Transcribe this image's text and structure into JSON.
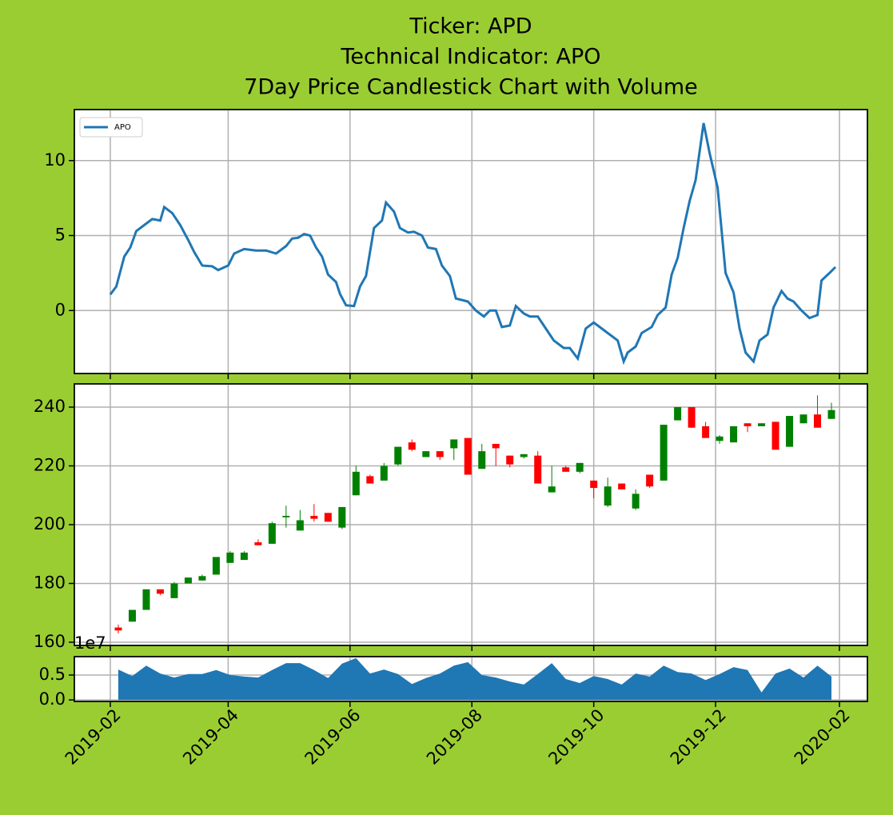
{
  "chart_data": [
    {
      "type": "line",
      "title": [
        "Ticker: APD",
        "Technical Indicator: APO",
        "7Day Price Candlestick Chart with Volume"
      ],
      "x": [
        "2019-02-01",
        "2019-02-04",
        "2019-02-08",
        "2019-02-11",
        "2019-02-14",
        "2019-02-18",
        "2019-02-22",
        "2019-02-26",
        "2019-02-28",
        "2019-03-04",
        "2019-03-08",
        "2019-03-12",
        "2019-03-15",
        "2019-03-19",
        "2019-03-24",
        "2019-03-27",
        "2019-04-01",
        "2019-04-04",
        "2019-04-09",
        "2019-04-15",
        "2019-04-20",
        "2019-04-25",
        "2019-04-30",
        "2019-05-03",
        "2019-05-06",
        "2019-05-09",
        "2019-05-12",
        "2019-05-15",
        "2019-05-18",
        "2019-05-21",
        "2019-05-25",
        "2019-05-27",
        "2019-05-30",
        "2019-06-03",
        "2019-06-06",
        "2019-06-09",
        "2019-06-13",
        "2019-06-17",
        "2019-06-19",
        "2019-06-23",
        "2019-06-26",
        "2019-06-30",
        "2019-07-03",
        "2019-07-07",
        "2019-07-10",
        "2019-07-14",
        "2019-07-17",
        "2019-07-21",
        "2019-07-24",
        "2019-07-30",
        "2019-08-03",
        "2019-08-07",
        "2019-08-10",
        "2019-08-13",
        "2019-08-16",
        "2019-08-20",
        "2019-08-23",
        "2019-08-27",
        "2019-08-30",
        "2019-09-03",
        "2019-09-07",
        "2019-09-11",
        "2019-09-16",
        "2019-09-19",
        "2019-09-23",
        "2019-09-27",
        "2019-10-01",
        "2019-10-05",
        "2019-10-09",
        "2019-10-13",
        "2019-10-16",
        "2019-10-18",
        "2019-10-22",
        "2019-10-25",
        "2019-10-30",
        "2019-11-02",
        "2019-11-06",
        "2019-11-09",
        "2019-11-12",
        "2019-11-15",
        "2019-11-18",
        "2019-11-21",
        "2019-11-25",
        "2019-11-28",
        "2019-12-02",
        "2019-12-06",
        "2019-12-10",
        "2019-12-13",
        "2019-12-16",
        "2019-12-20",
        "2019-12-23",
        "2019-12-27",
        "2019-12-30",
        "2020-01-03",
        "2020-01-06",
        "2020-01-09",
        "2020-01-13",
        "2020-01-17",
        "2020-01-21",
        "2020-01-23",
        "2020-01-27",
        "2020-01-30"
      ],
      "series": [
        {
          "name": "APO",
          "color": "#1f77b4",
          "values": [
            1.07,
            1.6,
            3.6,
            4.2,
            5.3,
            5.7,
            6.1,
            6.0,
            6.9,
            6.5,
            5.7,
            4.7,
            3.9,
            3.0,
            2.95,
            2.7,
            3.0,
            3.8,
            4.1,
            4.0,
            4.0,
            3.8,
            4.3,
            4.8,
            4.85,
            5.1,
            5.0,
            4.2,
            3.6,
            2.4,
            1.9,
            1.1,
            0.35,
            0.3,
            1.6,
            2.3,
            5.5,
            6.0,
            7.2,
            6.6,
            5.5,
            5.2,
            5.25,
            5.0,
            4.2,
            4.1,
            3.0,
            2.3,
            0.8,
            0.6,
            0.0,
            -0.4,
            0.0,
            0.0,
            -1.1,
            -1.0,
            0.3,
            -0.2,
            -0.4,
            -0.4,
            -1.2,
            -2.0,
            -2.5,
            -2.5,
            -3.2,
            -1.2,
            -0.8,
            -1.2,
            -1.6,
            -2.0,
            -3.4,
            -2.8,
            -2.4,
            -1.5,
            -1.1,
            -0.3,
            0.2,
            2.4,
            3.5,
            5.5,
            7.3,
            8.7,
            12.5,
            10.5,
            8.2,
            2.5,
            1.2,
            -1.2,
            -2.8,
            -3.4,
            -2.0,
            -1.6,
            0.2,
            1.3,
            0.8,
            0.6,
            0.0,
            -0.5,
            -0.3,
            2.0,
            2.5,
            2.9
          ]
        }
      ],
      "ylim": [
        -4.2,
        13.4
      ],
      "yticks": [
        0,
        5,
        10
      ],
      "grid": true,
      "legend": "upper left"
    },
    {
      "type": "candlestick",
      "x": [
        "2019-02-05",
        "2019-02-12",
        "2019-02-19",
        "2019-02-26",
        "2019-03-05",
        "2019-03-12",
        "2019-03-19",
        "2019-03-26",
        "2019-04-02",
        "2019-04-09",
        "2019-04-16",
        "2019-04-23",
        "2019-04-30",
        "2019-05-07",
        "2019-05-14",
        "2019-05-21",
        "2019-05-28",
        "2019-06-04",
        "2019-06-11",
        "2019-06-18",
        "2019-06-25",
        "2019-07-02",
        "2019-07-09",
        "2019-07-16",
        "2019-07-23",
        "2019-07-30",
        "2019-08-06",
        "2019-08-13",
        "2019-08-20",
        "2019-08-27",
        "2019-09-03",
        "2019-09-10",
        "2019-09-17",
        "2019-09-24",
        "2019-10-01",
        "2019-10-08",
        "2019-10-15",
        "2019-10-22",
        "2019-10-29",
        "2019-11-05",
        "2019-11-12",
        "2019-11-19",
        "2019-11-26",
        "2019-12-03",
        "2019-12-10",
        "2019-12-17",
        "2019-12-24",
        "2019-12-31",
        "2020-01-07",
        "2020-01-14",
        "2020-01-21",
        "2020-01-28"
      ],
      "open": [
        165,
        167,
        171,
        178,
        175,
        180,
        181,
        183,
        187,
        188,
        194,
        193.5,
        202.5,
        198,
        203,
        204,
        199,
        210,
        216.5,
        215,
        220.5,
        228,
        223,
        225,
        226,
        229.5,
        219,
        227.5,
        223.5,
        223,
        223.5,
        211,
        219.5,
        218,
        215,
        206.5,
        214,
        205.5,
        217,
        215,
        235.5,
        240,
        233.5,
        228.5,
        228,
        234.5,
        233.5,
        235,
        226.5,
        234.5,
        237.5,
        236
      ],
      "high": [
        166,
        171,
        178,
        178,
        180.5,
        182,
        183,
        189,
        191,
        191,
        195,
        201,
        206.5,
        205,
        207,
        204,
        206,
        220,
        217,
        221,
        226.5,
        229,
        225,
        225,
        229,
        229.5,
        227.5,
        227.5,
        223.5,
        224,
        225,
        220,
        220,
        221,
        215,
        216,
        214,
        212,
        217,
        234,
        240,
        240,
        235,
        230.5,
        233.5,
        234.5,
        234.5,
        235,
        237,
        237.5,
        244,
        241.5
      ],
      "low": [
        163,
        167,
        171,
        176,
        175,
        180,
        181,
        183,
        187,
        188,
        193,
        193.5,
        199,
        198,
        201,
        201,
        198.5,
        210,
        214,
        215,
        220,
        225,
        223,
        222,
        222,
        217,
        219,
        220,
        219.5,
        222.5,
        214,
        211,
        218,
        217.5,
        209,
        206,
        212,
        205,
        212.5,
        215,
        235.5,
        233,
        229.5,
        227.5,
        228,
        231.5,
        233.5,
        225.5,
        226.5,
        234.5,
        233,
        236
      ],
      "close": [
        164,
        171,
        178,
        176.5,
        180,
        182,
        182.5,
        189,
        190.5,
        190.5,
        193,
        200.5,
        203,
        201.5,
        202,
        201,
        206,
        218,
        214,
        220,
        226.5,
        225.5,
        225,
        223,
        229,
        217,
        225,
        226,
        220.5,
        224,
        214,
        213,
        218,
        221,
        212.5,
        213,
        212,
        210.5,
        213,
        234,
        240,
        233,
        229.5,
        230,
        233.5,
        233.5,
        234.5,
        225.5,
        237,
        237.5,
        233,
        239
      ],
      "up_color": "#008000",
      "down_color": "#ff0000",
      "ylim": [
        158.9,
        247.9
      ],
      "yticks": [
        160,
        180,
        200,
        220,
        240
      ],
      "grid": true
    },
    {
      "type": "area",
      "x": [
        "2019-02-05",
        "2019-02-12",
        "2019-02-19",
        "2019-02-26",
        "2019-03-05",
        "2019-03-12",
        "2019-03-19",
        "2019-03-26",
        "2019-04-02",
        "2019-04-09",
        "2019-04-16",
        "2019-04-23",
        "2019-04-30",
        "2019-05-07",
        "2019-05-14",
        "2019-05-21",
        "2019-05-28",
        "2019-06-04",
        "2019-06-11",
        "2019-06-18",
        "2019-06-25",
        "2019-07-02",
        "2019-07-09",
        "2019-07-16",
        "2019-07-23",
        "2019-07-30",
        "2019-08-06",
        "2019-08-13",
        "2019-08-20",
        "2019-08-27",
        "2019-09-03",
        "2019-09-10",
        "2019-09-17",
        "2019-09-24",
        "2019-10-01",
        "2019-10-08",
        "2019-10-15",
        "2019-10-22",
        "2019-10-29",
        "2019-11-05",
        "2019-11-12",
        "2019-11-19",
        "2019-11-26",
        "2019-12-03",
        "2019-12-10",
        "2019-12-17",
        "2019-12-24",
        "2019-12-31",
        "2020-01-07",
        "2020-01-14",
        "2020-01-21",
        "2020-01-28"
      ],
      "values": [
        0.61,
        0.48,
        0.69,
        0.53,
        0.45,
        0.52,
        0.52,
        0.6,
        0.5,
        0.47,
        0.45,
        0.6,
        0.74,
        0.74,
        0.6,
        0.44,
        0.73,
        0.84,
        0.53,
        0.61,
        0.52,
        0.32,
        0.44,
        0.53,
        0.69,
        0.76,
        0.5,
        0.45,
        0.37,
        0.31,
        0.52,
        0.74,
        0.42,
        0.34,
        0.48,
        0.42,
        0.31,
        0.53,
        0.47,
        0.69,
        0.56,
        0.53,
        0.4,
        0.52,
        0.66,
        0.6,
        0.15,
        0.53,
        0.63,
        0.45,
        0.69,
        0.47
      ],
      "color": "#1f77b4",
      "offset_label": "1e7",
      "ylim": [
        -0.03,
        0.87
      ],
      "yticks": [
        {
          "value": 0,
          "label": "0.0"
        },
        0.5
      ],
      "grid": true,
      "xlim": [
        "2019-01-14",
        "2020-02-15"
      ],
      "xticks": [
        {
          "value": "2019-02-01",
          "label": "2019-02"
        },
        {
          "value": "2019-04-01",
          "label": "2019-04"
        },
        {
          "value": "2019-06-01",
          "label": "2019-06"
        },
        {
          "value": "2019-08-01",
          "label": "2019-08"
        },
        {
          "value": "2019-10-01",
          "label": "2019-10"
        },
        {
          "value": "2019-12-01",
          "label": "2019-12"
        },
        {
          "value": "2020-02-01",
          "label": "2020-02"
        }
      ]
    }
  ]
}
